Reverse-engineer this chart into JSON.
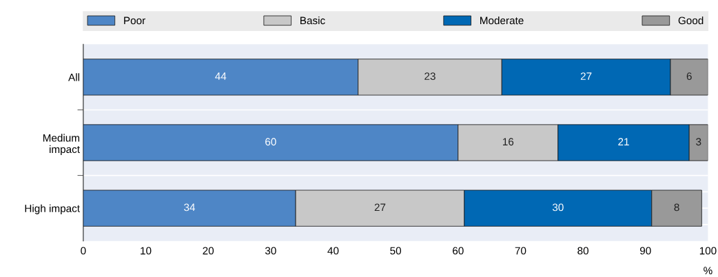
{
  "chart_data": {
    "type": "bar",
    "orientation": "horizontal",
    "stacked": true,
    "data_labels": true,
    "categories": [
      "All",
      "Medium\nimpact",
      "High impact"
    ],
    "series": [
      {
        "name": "Poor",
        "color": "#4e86c6",
        "values": [
          44,
          60,
          34
        ]
      },
      {
        "name": "Basic",
        "color": "#c8c8c8",
        "values": [
          23,
          16,
          27
        ]
      },
      {
        "name": "Moderate",
        "color": "#0068b4",
        "values": [
          27,
          21,
          30
        ]
      },
      {
        "name": "Good",
        "color": "#999999",
        "values": [
          6,
          3,
          8
        ]
      }
    ],
    "xlim": [
      0,
      100
    ],
    "xticks": [
      0,
      10,
      20,
      30,
      40,
      50,
      60,
      70,
      80,
      90,
      100
    ],
    "xlabel": "%",
    "grid": "y",
    "legend": "top"
  }
}
